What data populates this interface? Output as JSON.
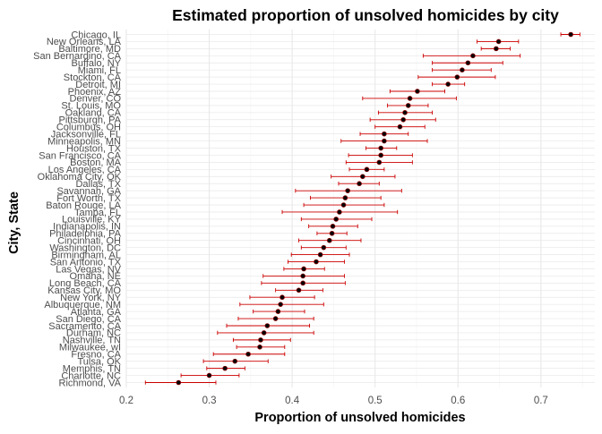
{
  "chart_data": {
    "type": "scatter",
    "style": "point estimates with horizontal error bars (confidence intervals), ggplot minimal theme",
    "title": "Estimated proportion of unsolved homicides by city",
    "xlabel": "Proportion of unsolved homicides",
    "ylabel": "City, State",
    "xlim": [
      0.2,
      0.765
    ],
    "x_ticks": [
      0.2,
      0.3,
      0.4,
      0.5,
      0.6,
      0.7
    ],
    "x_tick_labels": [
      "0.2",
      "0.3",
      "0.4",
      "0.5",
      "0.6",
      "0.7"
    ],
    "grid": true,
    "legend": "none",
    "colors": {
      "point_fill": "#000000",
      "point_edge": "#8b0000",
      "errorbar": "#cc0000",
      "grid_major": "#e8e8e8",
      "grid_minor": "#f3f3f3"
    },
    "cities": [
      {
        "label": "Chicago, IL",
        "estimate": 0.736,
        "lower": 0.724,
        "upper": 0.747
      },
      {
        "label": "New Orleans, LA",
        "estimate": 0.649,
        "lower": 0.623,
        "upper": 0.673
      },
      {
        "label": "Baltimore, MD",
        "estimate": 0.646,
        "lower": 0.628,
        "upper": 0.663
      },
      {
        "label": "San Bernardino, CA",
        "estimate": 0.618,
        "lower": 0.558,
        "upper": 0.675
      },
      {
        "label": "Buffalo, NY",
        "estimate": 0.612,
        "lower": 0.569,
        "upper": 0.654
      },
      {
        "label": "Miami, FL",
        "estimate": 0.605,
        "lower": 0.569,
        "upper": 0.64
      },
      {
        "label": "Stockton, CA",
        "estimate": 0.599,
        "lower": 0.552,
        "upper": 0.645
      },
      {
        "label": "Detroit, MI",
        "estimate": 0.588,
        "lower": 0.569,
        "upper": 0.608
      },
      {
        "label": "Phoenix, AZ",
        "estimate": 0.551,
        "lower": 0.518,
        "upper": 0.584
      },
      {
        "label": "Denver, CO",
        "estimate": 0.542,
        "lower": 0.485,
        "upper": 0.598
      },
      {
        "label": "St. Louis, MO",
        "estimate": 0.54,
        "lower": 0.515,
        "upper": 0.564
      },
      {
        "label": "Oakland, CA",
        "estimate": 0.536,
        "lower": 0.504,
        "upper": 0.569
      },
      {
        "label": "Pittsburgh, PA",
        "estimate": 0.534,
        "lower": 0.494,
        "upper": 0.573
      },
      {
        "label": "Columbus, OH",
        "estimate": 0.53,
        "lower": 0.5,
        "upper": 0.56
      },
      {
        "label": "Jacksonville, FL",
        "estimate": 0.511,
        "lower": 0.482,
        "upper": 0.54
      },
      {
        "label": "Minneapolis, MN",
        "estimate": 0.511,
        "lower": 0.459,
        "upper": 0.563
      },
      {
        "label": "Houston, TX",
        "estimate": 0.507,
        "lower": 0.489,
        "upper": 0.526
      },
      {
        "label": "San Francisco, CA",
        "estimate": 0.507,
        "lower": 0.468,
        "upper": 0.545
      },
      {
        "label": "Boston, MA",
        "estimate": 0.505,
        "lower": 0.465,
        "upper": 0.545
      },
      {
        "label": "Los Angeles, CA",
        "estimate": 0.49,
        "lower": 0.469,
        "upper": 0.511
      },
      {
        "label": "Oklahoma City, OK",
        "estimate": 0.485,
        "lower": 0.447,
        "upper": 0.524
      },
      {
        "label": "Dallas, TX",
        "estimate": 0.481,
        "lower": 0.456,
        "upper": 0.505
      },
      {
        "label": "Savannah, GA",
        "estimate": 0.467,
        "lower": 0.404,
        "upper": 0.532
      },
      {
        "label": "Fort Worth, TX",
        "estimate": 0.464,
        "lower": 0.422,
        "upper": 0.507
      },
      {
        "label": "Baton Rouge, LA",
        "estimate": 0.462,
        "lower": 0.414,
        "upper": 0.511
      },
      {
        "label": "Tampa, FL",
        "estimate": 0.457,
        "lower": 0.388,
        "upper": 0.527
      },
      {
        "label": "Louisville, KY",
        "estimate": 0.453,
        "lower": 0.411,
        "upper": 0.496
      },
      {
        "label": "Indianapolis, IN",
        "estimate": 0.449,
        "lower": 0.42,
        "upper": 0.479
      },
      {
        "label": "Philadelphia, PA",
        "estimate": 0.448,
        "lower": 0.43,
        "upper": 0.466
      },
      {
        "label": "Cincinnati, OH",
        "estimate": 0.445,
        "lower": 0.408,
        "upper": 0.483
      },
      {
        "label": "Washington, DC",
        "estimate": 0.438,
        "lower": 0.411,
        "upper": 0.465
      },
      {
        "label": "Birmingham, AL",
        "estimate": 0.434,
        "lower": 0.399,
        "upper": 0.469
      },
      {
        "label": "San Antonio, TX",
        "estimate": 0.429,
        "lower": 0.395,
        "upper": 0.463
      },
      {
        "label": "Las Vegas, NV",
        "estimate": 0.414,
        "lower": 0.39,
        "upper": 0.439
      },
      {
        "label": "Omaha, NE",
        "estimate": 0.413,
        "lower": 0.365,
        "upper": 0.463
      },
      {
        "label": "Long Beach, CA",
        "estimate": 0.413,
        "lower": 0.363,
        "upper": 0.464
      },
      {
        "label": "Kansas City, MO",
        "estimate": 0.408,
        "lower": 0.38,
        "upper": 0.437
      },
      {
        "label": "New York, NY",
        "estimate": 0.388,
        "lower": 0.349,
        "upper": 0.427
      },
      {
        "label": "Albuquerque, NM",
        "estimate": 0.386,
        "lower": 0.337,
        "upper": 0.438
      },
      {
        "label": "Atlanta, GA",
        "estimate": 0.383,
        "lower": 0.353,
        "upper": 0.415
      },
      {
        "label": "San Diego, CA",
        "estimate": 0.38,
        "lower": 0.335,
        "upper": 0.426
      },
      {
        "label": "Sacramento, CA",
        "estimate": 0.37,
        "lower": 0.321,
        "upper": 0.421
      },
      {
        "label": "Durham, NC",
        "estimate": 0.366,
        "lower": 0.31,
        "upper": 0.426
      },
      {
        "label": "Nashville, TN",
        "estimate": 0.362,
        "lower": 0.329,
        "upper": 0.398
      },
      {
        "label": "Milwaukee, wI",
        "estimate": 0.361,
        "lower": 0.333,
        "upper": 0.391
      },
      {
        "label": "Fresno, CA",
        "estimate": 0.347,
        "lower": 0.305,
        "upper": 0.391
      },
      {
        "label": "Tulsa, OK",
        "estimate": 0.331,
        "lower": 0.293,
        "upper": 0.371
      },
      {
        "label": "Memphis, TN",
        "estimate": 0.319,
        "lower": 0.297,
        "upper": 0.343
      },
      {
        "label": "Charlotte, NC",
        "estimate": 0.3,
        "lower": 0.266,
        "upper": 0.336
      },
      {
        "label": "Richmond, VA",
        "estimate": 0.263,
        "lower": 0.223,
        "upper": 0.308
      }
    ]
  }
}
